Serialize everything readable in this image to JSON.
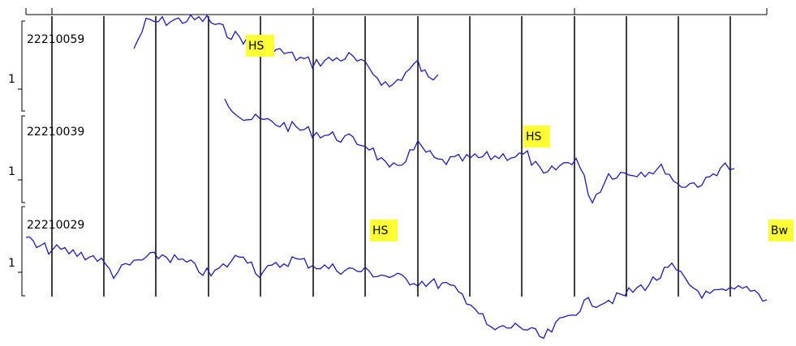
{
  "tracks": [
    {
      "id": "22210059",
      "scale": "1"
    },
    {
      "id": "22210039",
      "scale": "1"
    },
    {
      "id": "22210029",
      "scale": "1"
    }
  ],
  "markers": [
    {
      "label": "HS"
    },
    {
      "label": "HS"
    },
    {
      "label": "HS"
    },
    {
      "label": "Bw"
    }
  ]
}
